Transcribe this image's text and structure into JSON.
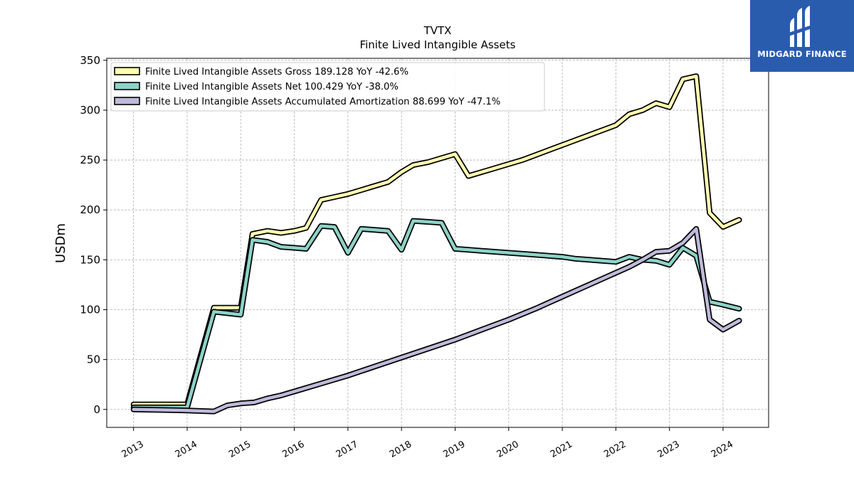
{
  "chart_data": {
    "type": "line",
    "title": "TVTX",
    "subtitle": "Finite Lived Intangible Assets",
    "xlabel": "",
    "ylabel": "USDm",
    "xlim": [
      2012.5,
      2024.85
    ],
    "ylim": [
      -18,
      352
    ],
    "grid": true,
    "legend_position": "top-left",
    "x_ticks": [
      "2013",
      "2014",
      "2015",
      "2016",
      "2017",
      "2018",
      "2019",
      "2020",
      "2021",
      "2022",
      "2023",
      "2024"
    ],
    "y_ticks": [
      "0",
      "50",
      "100",
      "150",
      "200",
      "250",
      "300",
      "350"
    ],
    "series": [
      {
        "name": "Finite Lived Intangible Assets Gross",
        "legend_label": "Finite Lived Intangible Assets Gross  189.128 YoY -42.6%",
        "color": "#ffffb3",
        "x": [
          2013.0,
          2014.0,
          2014.5,
          2015.0,
          2015.22,
          2015.5,
          2015.75,
          2016.0,
          2016.22,
          2016.5,
          2016.75,
          2017.0,
          2017.25,
          2017.5,
          2017.75,
          2018.0,
          2018.22,
          2018.5,
          2018.75,
          2019.0,
          2019.25,
          2019.5,
          2019.75,
          2020.0,
          2020.25,
          2020.5,
          2020.75,
          2021.0,
          2021.25,
          2021.5,
          2021.75,
          2022.0,
          2022.25,
          2022.5,
          2022.75,
          2023.0,
          2023.25,
          2023.5,
          2023.75,
          2024.0,
          2024.3
        ],
        "values": [
          5,
          5,
          102,
          102,
          176,
          179,
          177,
          179,
          182,
          210,
          213,
          216,
          220,
          224,
          228,
          238,
          245,
          248,
          252,
          256,
          234,
          238,
          242,
          246,
          250,
          255,
          260,
          265,
          270,
          275,
          280,
          285,
          296,
          300,
          307,
          303,
          331,
          334,
          197,
          183,
          190
        ]
      },
      {
        "name": "Finite Lived Intangible Assets Net",
        "legend_label": "Finite Lived Intangible Assets Net  100.429 YoY -38.0%",
        "color": "#8dd3c7",
        "x": [
          2013.0,
          2014.0,
          2014.5,
          2015.0,
          2015.22,
          2015.5,
          2015.75,
          2016.0,
          2016.22,
          2016.5,
          2016.75,
          2017.0,
          2017.25,
          2017.5,
          2017.75,
          2018.0,
          2018.22,
          2018.5,
          2018.75,
          2019.0,
          2019.25,
          2019.5,
          2019.75,
          2020.0,
          2020.25,
          2020.5,
          2020.75,
          2021.0,
          2021.25,
          2021.5,
          2021.75,
          2022.0,
          2022.25,
          2022.5,
          2022.75,
          2023.0,
          2023.25,
          2023.5,
          2023.75,
          2024.0,
          2024.3
        ],
        "values": [
          2,
          2,
          98,
          95,
          170,
          168,
          163,
          162,
          161,
          184,
          183,
          157,
          181,
          180,
          179,
          160,
          189,
          188,
          187,
          161,
          160,
          159,
          158,
          157,
          156,
          155,
          154,
          153,
          151,
          150,
          149,
          148,
          153,
          150,
          149,
          145,
          162,
          154,
          108,
          105,
          101
        ]
      },
      {
        "name": "Finite Lived Intangible Assets Accumulated Amortization",
        "legend_label": "Finite Lived Intangible Assets Accumulated Amortization  88.699 YoY -47.1%",
        "color": "#bebada",
        "x": [
          2013.0,
          2014.0,
          2014.5,
          2014.75,
          2015.0,
          2015.25,
          2015.5,
          2015.75,
          2016.0,
          2016.5,
          2017.0,
          2017.5,
          2018.0,
          2018.5,
          2019.0,
          2019.5,
          2020.0,
          2020.5,
          2021.0,
          2021.5,
          2022.0,
          2022.25,
          2022.5,
          2022.75,
          2023.0,
          2023.25,
          2023.5,
          2023.75,
          2024.0,
          2024.3
        ],
        "values": [
          0,
          -1,
          -2,
          4,
          6,
          7,
          11,
          14,
          18,
          26,
          34,
          43,
          52,
          61,
          70,
          80,
          90,
          101,
          113,
          125,
          137,
          143,
          150,
          158,
          159,
          167,
          181,
          90,
          80,
          89
        ]
      }
    ]
  },
  "logo": {
    "text": "MIDGARD FINANCE",
    "icon": "midgard-logo-icon",
    "bg": "#2a5cad"
  }
}
